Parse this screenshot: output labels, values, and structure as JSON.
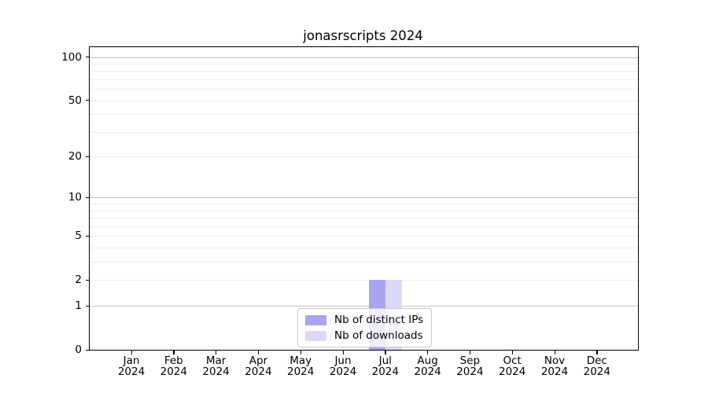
{
  "chart_data": {
    "type": "bar",
    "title": "jonasrscripts 2024",
    "categories": [
      "Jan 2024",
      "Feb 2024",
      "Mar 2024",
      "Apr 2024",
      "May 2024",
      "Jun 2024",
      "Jul 2024",
      "Aug 2024",
      "Sep 2024",
      "Oct 2024",
      "Nov 2024",
      "Dec 2024"
    ],
    "series": [
      {
        "name": "Nb of distinct IPs",
        "color": "#a6a6f0",
        "values": [
          0,
          0,
          0,
          0,
          0,
          0,
          2,
          0,
          0,
          0,
          0,
          0
        ]
      },
      {
        "name": "Nb of downloads",
        "color": "#dadaf8",
        "values": [
          0,
          0,
          0,
          0,
          0,
          0,
          2,
          0,
          0,
          0,
          0,
          0
        ]
      }
    ],
    "xlabel": "",
    "ylabel": "",
    "yscale": "log1p",
    "ylim": [
      0,
      117
    ],
    "yticks": [
      0,
      1,
      2,
      5,
      10,
      20,
      50,
      100
    ],
    "grid": true,
    "grid_major": [
      1,
      10,
      100
    ],
    "grid_minor": [
      2,
      3,
      4,
      5,
      6,
      7,
      8,
      9,
      20,
      30,
      40,
      50,
      60,
      70,
      80,
      90
    ],
    "legend_position": "lower center",
    "colors": {
      "background": "#ffffff",
      "spine": "#000000",
      "grid_major": "#c3c3c3",
      "grid_minor": "#ececec",
      "text": "#000000"
    }
  }
}
